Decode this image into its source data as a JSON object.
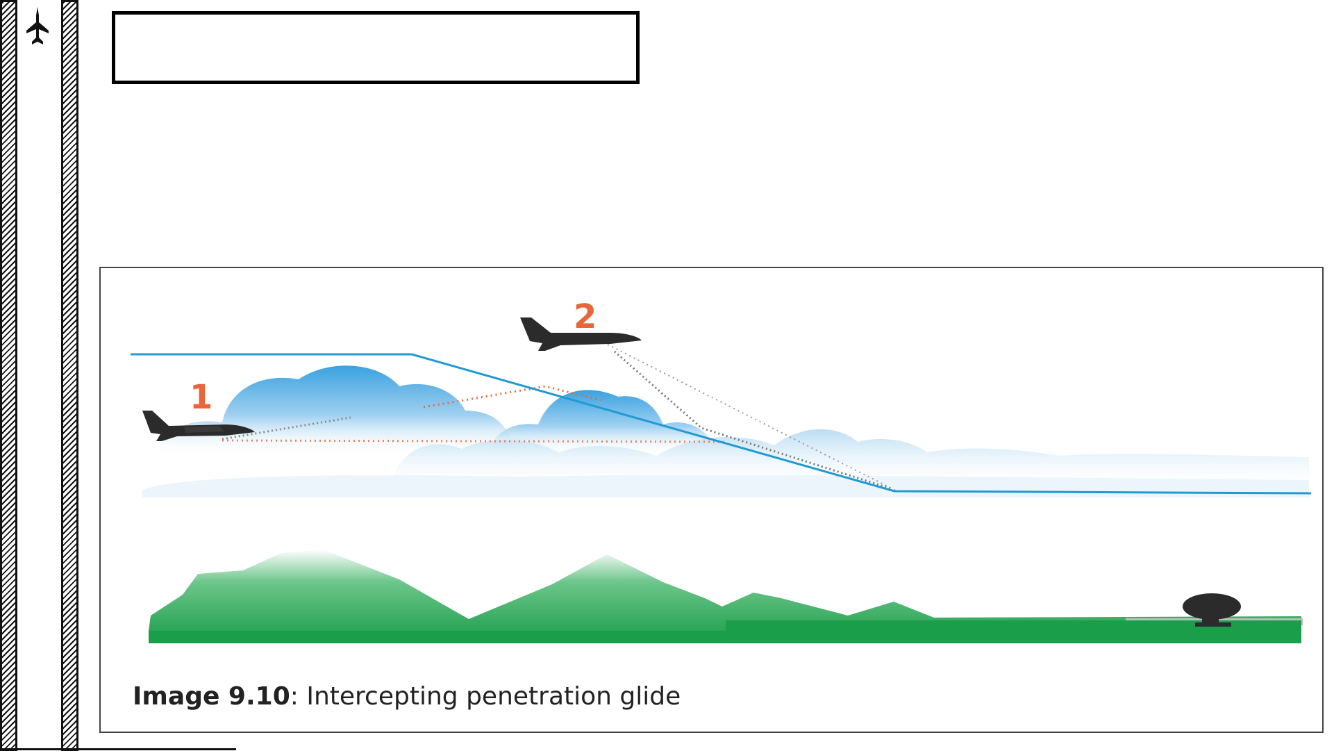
{
  "header": {
    "title": ""
  },
  "figure": {
    "label_1": "1",
    "label_2": "2",
    "caption_bold": "Image 9.10",
    "caption_sep": ":",
    "caption_text": " Intercepting penetration glide"
  },
  "colors": {
    "profile_line": "#1f9ad3",
    "cloud": "#3ea4e0",
    "terrain": "#1a9e4a",
    "label": "#e8673a",
    "aircraft": "#2b2b2b",
    "orange_path": "#e8673a",
    "grey_path": "#777777"
  },
  "icons": {
    "sidebar": "fighter-jet-icon",
    "ground_station": "radar-dish-icon"
  }
}
